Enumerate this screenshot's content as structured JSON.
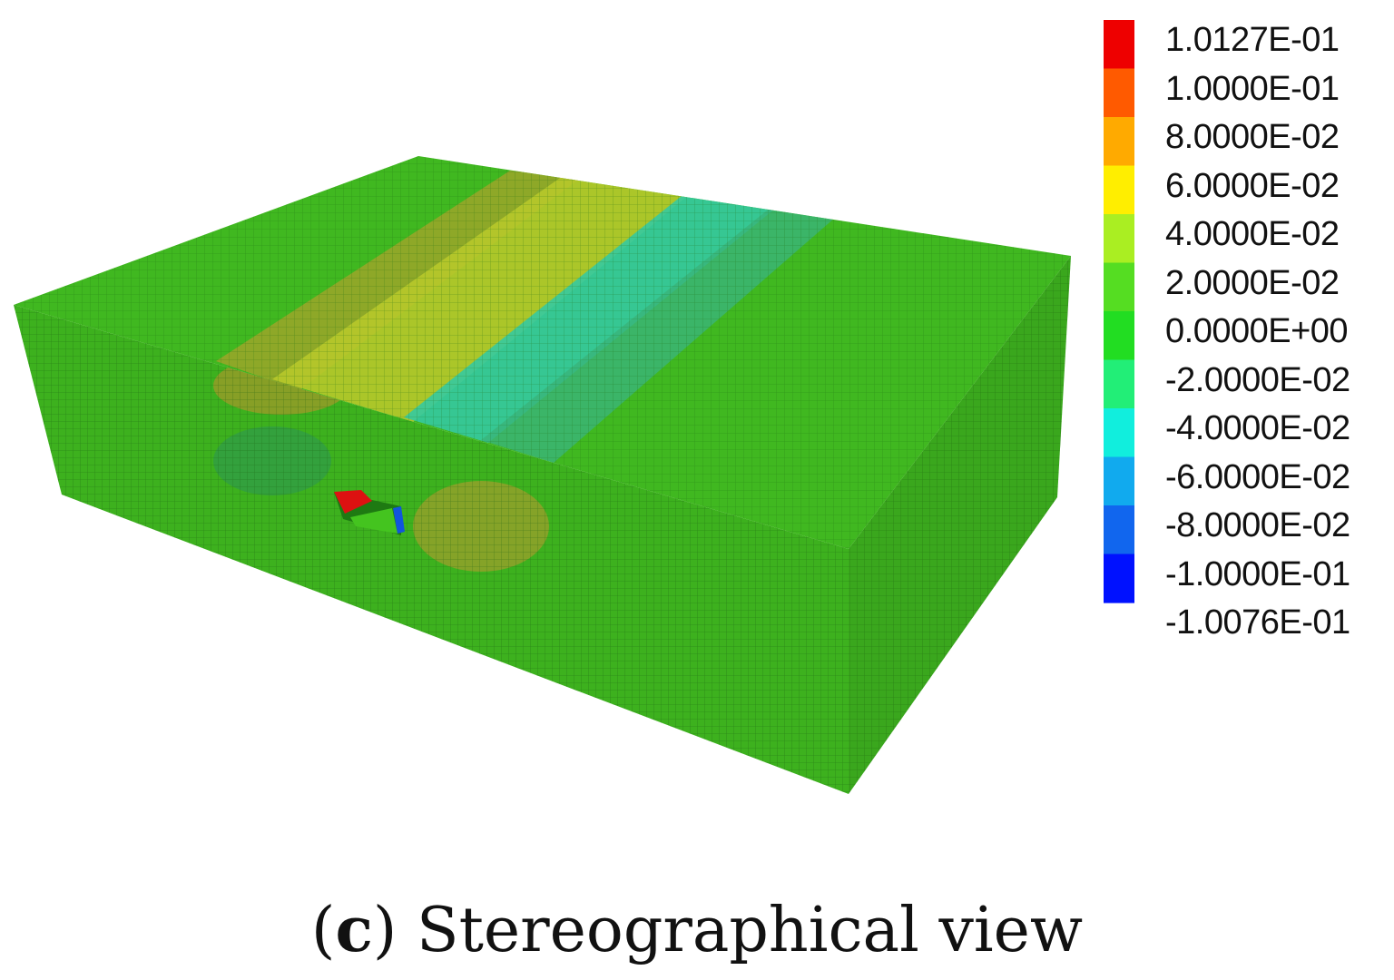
{
  "figure": {
    "caption_open": "(",
    "caption_letter": "c",
    "caption_text": ") Stereographical view"
  },
  "legend": {
    "labels": [
      "1.0127E-01",
      "1.0000E-01",
      "8.0000E-02",
      "6.0000E-02",
      "4.0000E-02",
      "2.0000E-02",
      "0.0000E+00",
      "-2.0000E-02",
      "-4.0000E-02",
      "-6.0000E-02",
      "-8.0000E-02",
      "-1.0000E-01",
      "-1.0076E-01"
    ],
    "colors": [
      "#ee0000",
      "#ff5a00",
      "#ffaa00",
      "#ffee00",
      "#aaee22",
      "#55dd22",
      "#22dd22",
      "#22ee77",
      "#11eedd",
      "#11aaee",
      "#1166ee",
      "#0011ff"
    ]
  },
  "model_colors": {
    "base_green": "#3cb41e",
    "side_green_dark": "#339a1c",
    "band_yellow": "#b4c828",
    "band_orange": "#a0a028",
    "band_cyan": "#32c8aa",
    "band_teal": "#3caa78",
    "tunnel_red": "#dd1111",
    "tunnel_blue": "#1155dd"
  }
}
